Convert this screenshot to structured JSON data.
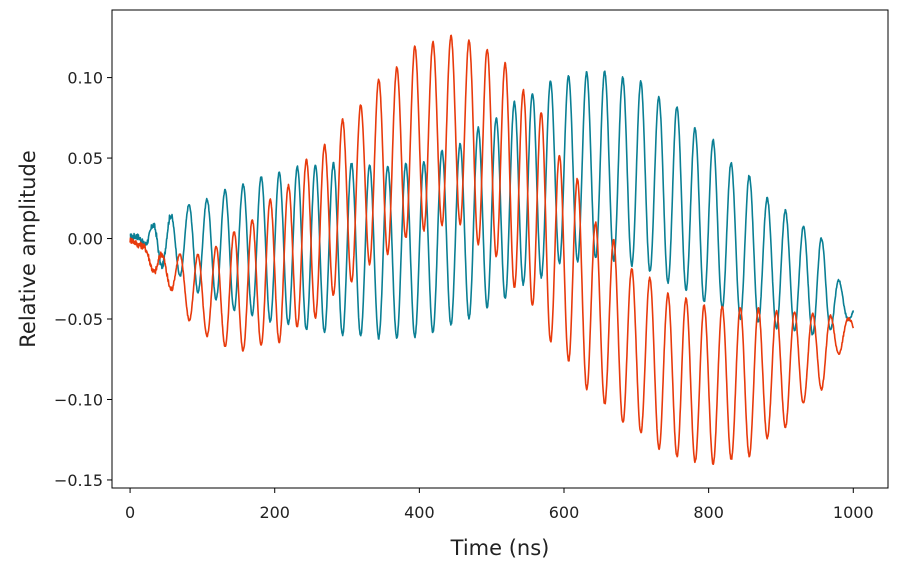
{
  "chart_data": {
    "type": "line",
    "title": "",
    "xlabel": "Time (ns)",
    "ylabel": "Relative amplitude",
    "xlim": [
      -25,
      1048
    ],
    "ylim": [
      -0.155,
      0.142
    ],
    "x_ticks": [
      0,
      200,
      400,
      600,
      800,
      1000
    ],
    "x_tick_labels": [
      "0",
      "200",
      "400",
      "600",
      "800",
      "1000"
    ],
    "y_ticks": [
      -0.15,
      -0.1,
      -0.05,
      0.0,
      0.05,
      0.1
    ],
    "y_tick_labels": [
      "−0.15",
      "−0.10",
      "−0.05",
      "0.00",
      "0.05",
      "0.10"
    ],
    "grid": false,
    "legend": "none",
    "series": [
      {
        "color": "#0a7f94",
        "description": "fast oscillation (~40 MHz) under a slow envelope",
        "x": [
          0,
          50,
          100,
          150,
          200,
          250,
          300,
          350,
          400,
          450,
          500,
          550,
          600,
          650,
          700,
          750,
          800,
          850,
          900,
          950,
          1000
        ],
        "upper_envelope": [
          0.004,
          0.014,
          0.024,
          0.033,
          0.041,
          0.046,
          0.047,
          0.045,
          0.047,
          0.058,
          0.074,
          0.09,
          0.101,
          0.104,
          0.098,
          0.083,
          0.062,
          0.04,
          0.018,
          0.002,
          -0.04
        ],
        "lower_envelope": [
          -0.002,
          -0.018,
          -0.034,
          -0.045,
          -0.052,
          -0.057,
          -0.06,
          -0.062,
          -0.061,
          -0.053,
          -0.042,
          -0.028,
          -0.015,
          -0.012,
          -0.017,
          -0.028,
          -0.04,
          -0.05,
          -0.056,
          -0.06,
          -0.05
        ]
      },
      {
        "color": "#e83a0c",
        "description": "fast oscillation (~40 MHz) under a slow envelope",
        "x": [
          0,
          50,
          100,
          150,
          200,
          250,
          300,
          350,
          400,
          450,
          500,
          550,
          600,
          650,
          700,
          750,
          800,
          850,
          900,
          950,
          1000
        ],
        "upper_envelope": [
          0.001,
          -0.01,
          -0.01,
          0.005,
          0.025,
          0.05,
          0.075,
          0.1,
          0.12,
          0.126,
          0.117,
          0.091,
          0.05,
          0.008,
          -0.02,
          -0.035,
          -0.042,
          -0.043,
          -0.045,
          -0.047,
          -0.05
        ],
        "lower_envelope": [
          -0.003,
          -0.03,
          -0.06,
          -0.07,
          -0.065,
          -0.05,
          -0.028,
          -0.01,
          0.005,
          0.01,
          -0.01,
          -0.04,
          -0.075,
          -0.102,
          -0.12,
          -0.135,
          -0.14,
          -0.136,
          -0.118,
          -0.095,
          -0.06
        ]
      }
    ]
  }
}
